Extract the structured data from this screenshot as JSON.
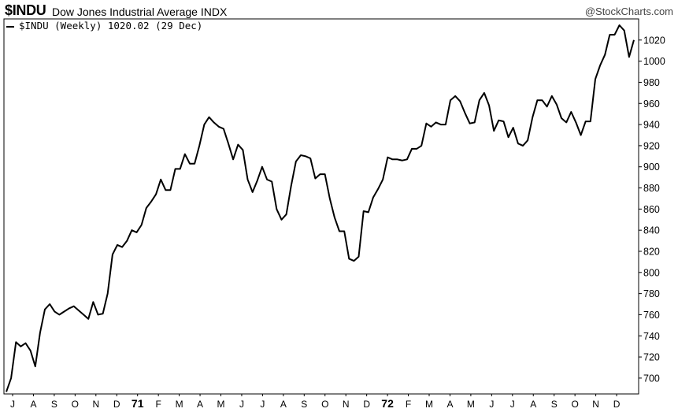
{
  "header": {
    "ticker": "$INDU",
    "name": "Dow Jones Industrial Average INDX",
    "credit": "@StockCharts.com"
  },
  "legend": {
    "label": "$INDU (Weekly) 1020.02 (29 Dec)"
  },
  "chart_data": {
    "type": "line",
    "title": "$INDU Dow Jones Industrial Average INDX",
    "series": [
      {
        "name": "$INDU (Weekly)",
        "color": "#000000",
        "values": [
          687,
          700,
          734,
          730,
          733,
          726,
          711,
          743,
          765,
          770,
          763,
          760,
          763,
          766,
          768,
          764,
          760,
          756,
          772,
          760,
          761,
          780,
          817,
          826,
          824,
          830,
          840,
          838,
          845,
          861,
          867,
          874,
          888,
          878,
          878,
          898,
          898,
          912,
          903,
          903,
          920,
          940,
          947,
          942,
          938,
          936,
          922,
          907,
          921,
          916,
          888,
          876,
          887,
          900,
          888,
          886,
          860,
          850,
          855,
          882,
          905,
          911,
          910,
          908,
          889,
          893,
          893,
          870,
          852,
          839,
          839,
          813,
          811,
          815,
          858,
          857,
          871,
          879,
          888,
          909,
          907,
          907,
          906,
          907,
          917,
          917,
          920,
          941,
          938,
          942,
          940,
          940,
          963,
          967,
          962,
          951,
          941,
          942,
          963,
          970,
          958,
          934,
          944,
          943,
          928,
          937,
          922,
          920,
          925,
          947,
          963,
          963,
          957,
          967,
          959,
          946,
          942,
          952,
          942,
          930,
          943,
          943,
          983,
          996,
          1006,
          1025,
          1025,
          1034,
          1029,
          1004,
          1020
        ]
      }
    ],
    "y_axis": {
      "min": 685,
      "max": 1040,
      "ticks": [
        700,
        720,
        740,
        760,
        780,
        800,
        820,
        840,
        860,
        880,
        900,
        920,
        940,
        960,
        980,
        1000,
        1020
      ],
      "position": "right"
    },
    "x_axis": {
      "labels": [
        "J",
        "A",
        "S",
        "O",
        "N",
        "D",
        "71",
        "F",
        "M",
        "A",
        "M",
        "J",
        "J",
        "A",
        "S",
        "O",
        "N",
        "D",
        "72",
        "F",
        "M",
        "A",
        "M",
        "J",
        "J",
        "A",
        "S",
        "O",
        "N",
        "D"
      ],
      "bold_labels": [
        "71",
        "72"
      ]
    },
    "grid": false,
    "legend_position": "top-left"
  }
}
